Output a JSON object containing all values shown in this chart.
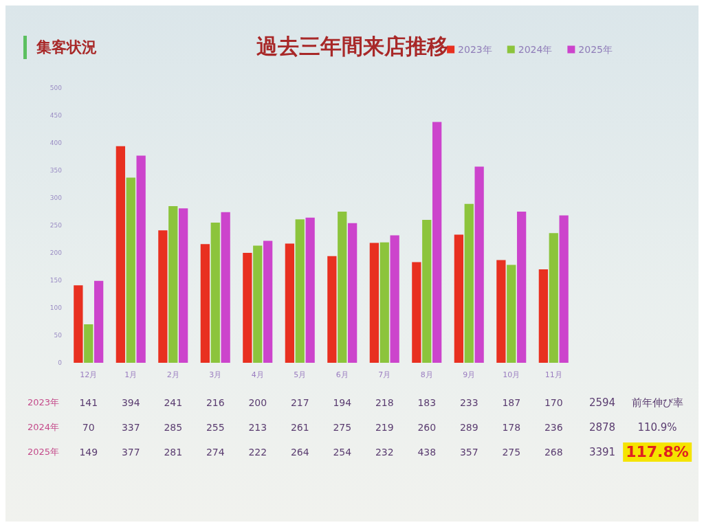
{
  "chart_data": {
    "type": "bar",
    "title": "過去三年間来店推移",
    "subtitle": "集客状況",
    "categories": [
      "12月",
      "1月",
      "2月",
      "3月",
      "4月",
      "5月",
      "6月",
      "7月",
      "8月",
      "9月",
      "10月",
      "11月"
    ],
    "series": [
      {
        "name": "2023年",
        "color": "#e83020",
        "values": [
          141,
          394,
          241,
          216,
          200,
          217,
          194,
          218,
          183,
          233,
          187,
          170
        ]
      },
      {
        "name": "2024年",
        "color": "#8cc43c",
        "values": [
          70,
          337,
          285,
          255,
          213,
          261,
          275,
          219,
          260,
          289,
          178,
          236
        ]
      },
      {
        "name": "2025年",
        "color": "#cc44cc",
        "values": [
          149,
          377,
          281,
          274,
          222,
          264,
          254,
          232,
          438,
          357,
          275,
          268
        ]
      }
    ],
    "ylim": [
      0,
      500
    ],
    "yticks": [
      0,
      50,
      100,
      150,
      200,
      250,
      300,
      350,
      400,
      450,
      500
    ],
    "grid": false,
    "legend": "top right",
    "data_labels": true,
    "annotations": [
      "2594",
      "2878",
      "3391",
      "前年伸び率",
      "110.9%",
      "117.8%"
    ]
  }
}
